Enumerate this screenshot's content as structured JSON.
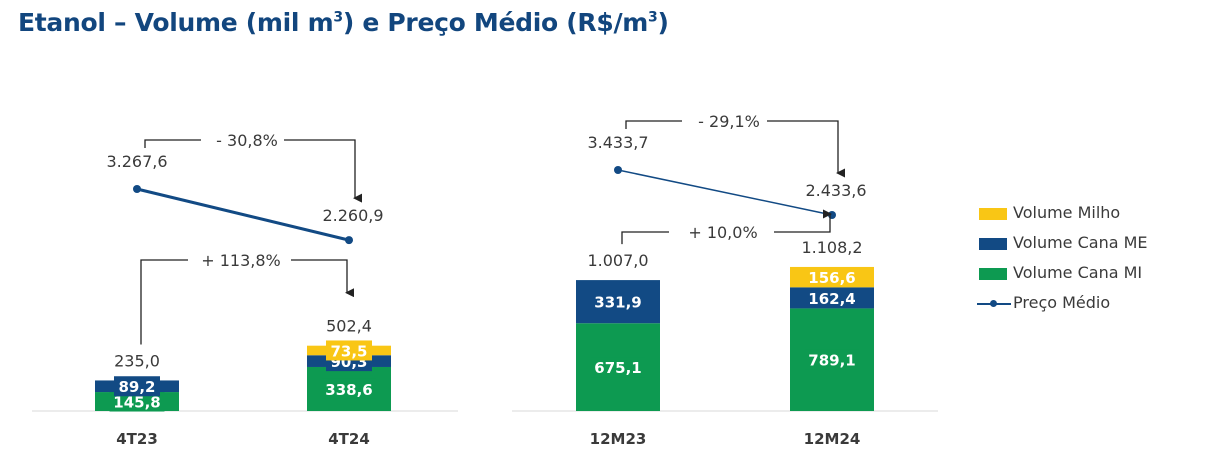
{
  "title_main": "Etanol – Volume (mil m",
  "title_sup1": "3",
  "title_mid": ") e Preço Médio (R$/m",
  "title_sup2": "3",
  "title_end": ")",
  "colors": {
    "milho": "#f9c615",
    "cana_me": "#124a84",
    "cana_mi": "#0d9a51",
    "preco": "#124a84",
    "title": "#12467e"
  },
  "legend": [
    {
      "label": "Volume Milho",
      "kind": "bar",
      "color_key": "milho"
    },
    {
      "label": "Volume Cana ME",
      "kind": "bar",
      "color_key": "cana_me"
    },
    {
      "label": "Volume Cana MI",
      "kind": "bar",
      "color_key": "cana_mi"
    },
    {
      "label": "Preço Médio",
      "kind": "line",
      "color_key": "preco"
    }
  ],
  "chart_data": [
    {
      "type": "bar",
      "stacked": true,
      "categories": [
        "4T23",
        "4T24"
      ],
      "series": [
        {
          "name": "Volume Cana MI",
          "values": [
            145.8,
            338.6
          ],
          "labels": [
            "145,8",
            "338,6"
          ]
        },
        {
          "name": "Volume Cana ME",
          "values": [
            89.2,
            90.3
          ],
          "labels": [
            "89,2",
            "90,3"
          ]
        },
        {
          "name": "Volume Milho",
          "values": [
            0,
            73.5
          ],
          "labels": [
            "",
            "73,5"
          ]
        }
      ],
      "totals": [
        "235,0",
        "502,4"
      ],
      "line": {
        "name": "Preço Médio",
        "values": [
          3267.6,
          2260.9
        ],
        "labels": [
          "3.267,6",
          "2.260,9"
        ]
      },
      "volume_change": "+ 113,8%",
      "price_change": "- 30,8%"
    },
    {
      "type": "bar",
      "stacked": true,
      "categories": [
        "12M23",
        "12M24"
      ],
      "series": [
        {
          "name": "Volume Cana MI",
          "values": [
            675.1,
            789.1
          ],
          "labels": [
            "675,1",
            "789,1"
          ]
        },
        {
          "name": "Volume Cana ME",
          "values": [
            331.9,
            162.4
          ],
          "labels": [
            "331,9",
            "162,4"
          ]
        },
        {
          "name": "Volume Milho",
          "values": [
            0,
            156.6
          ],
          "labels": [
            "",
            "156,6"
          ]
        }
      ],
      "totals": [
        "1.007,0",
        "1.108,2"
      ],
      "line": {
        "name": "Preço Médio",
        "values": [
          3433.7,
          2433.6
        ],
        "labels": [
          "3.433,7",
          "2.433,6"
        ]
      },
      "volume_change": "+ 10,0%",
      "price_change": "- 29,1%"
    }
  ]
}
